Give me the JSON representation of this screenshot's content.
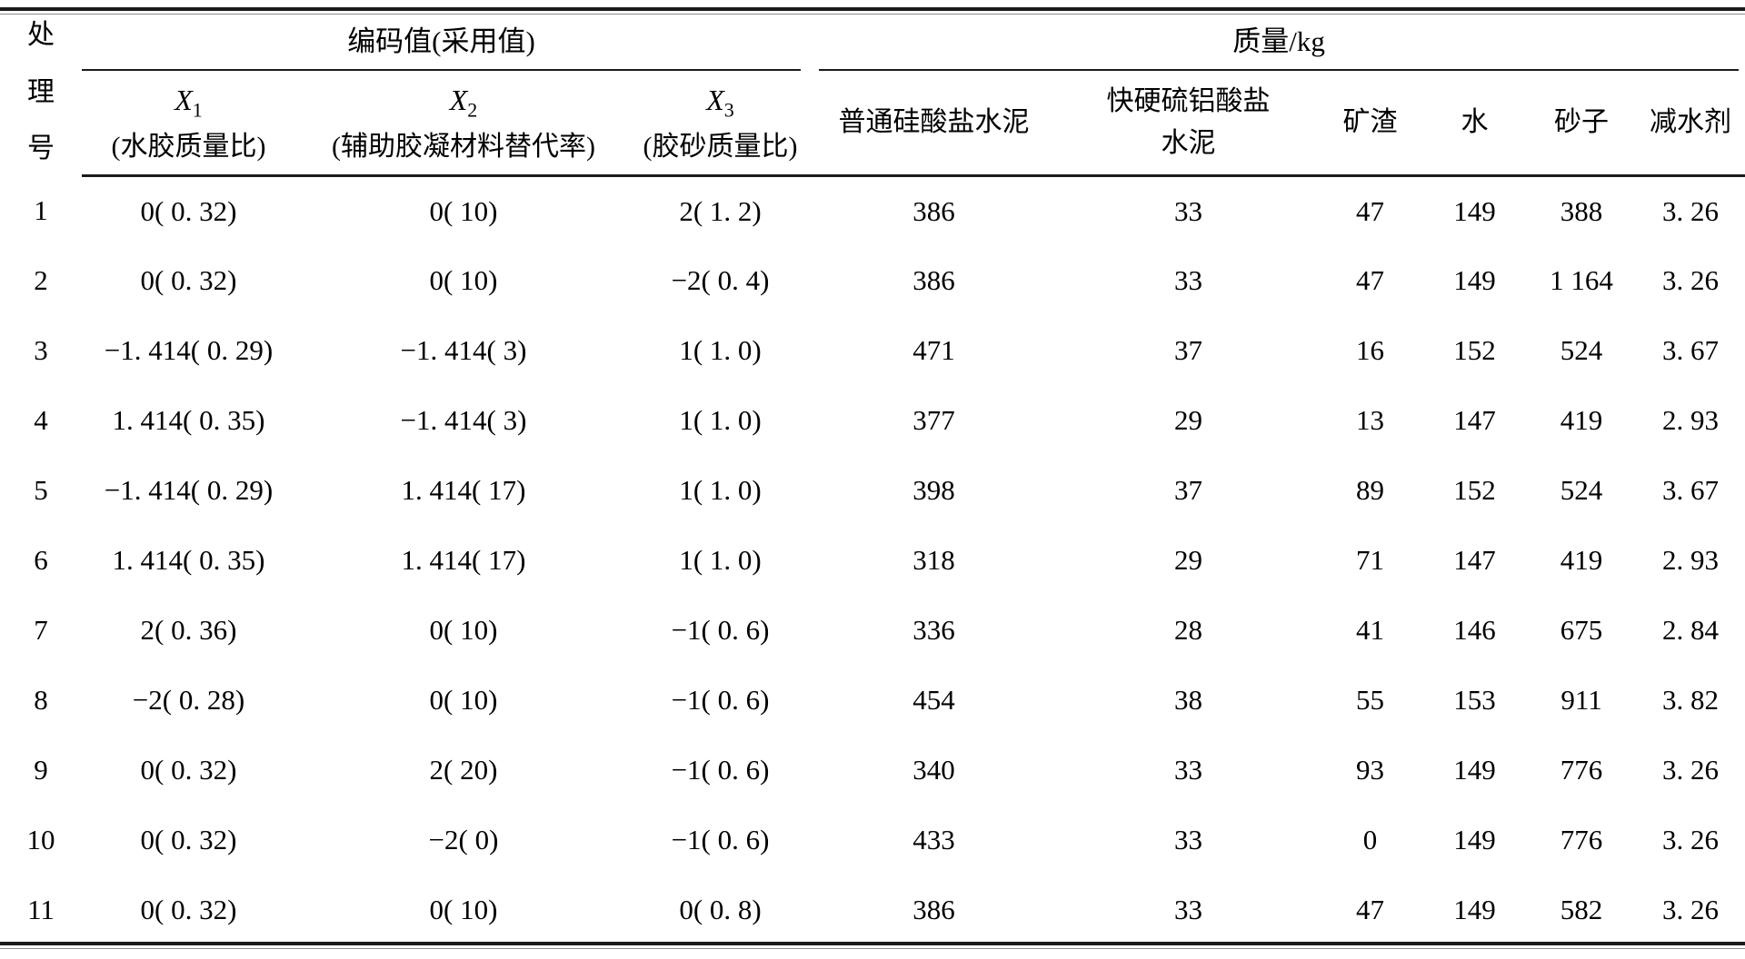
{
  "colors": {
    "background": "#ffffff",
    "text": "#000000",
    "rule": "#1b1b1b"
  },
  "table": {
    "row_header": {
      "chars": [
        "处",
        "理",
        "号"
      ]
    },
    "group_coded": "编码值(采用值)",
    "group_mass": "质量/kg",
    "coded_cols": [
      {
        "sym": "X",
        "sub": "1",
        "label": "(水胶质量比)"
      },
      {
        "sym": "X",
        "sub": "2",
        "label": "(辅助胶凝材料替代率)"
      },
      {
        "sym": "X",
        "sub": "3",
        "label": "(胶砂质量比)"
      }
    ],
    "mass_cols": [
      {
        "lines": [
          "普通硅酸盐水泥",
          ""
        ]
      },
      {
        "lines": [
          "快硬硫铝酸盐",
          "水泥"
        ]
      },
      {
        "lines": [
          "矿渣",
          ""
        ]
      },
      {
        "lines": [
          "水",
          ""
        ]
      },
      {
        "lines": [
          "砂子",
          ""
        ]
      },
      {
        "lines": [
          "减水剂",
          ""
        ]
      }
    ],
    "rows": [
      {
        "no": "1",
        "x1": "0( 0. 32)",
        "x2": "0( 10)",
        "x3": "2( 1. 2)",
        "opc": "386",
        "csa": "33",
        "slag": "47",
        "water": "149",
        "sand": "388",
        "wr": "3. 26"
      },
      {
        "no": "2",
        "x1": "0( 0. 32)",
        "x2": "0( 10)",
        "x3": "−2( 0. 4)",
        "opc": "386",
        "csa": "33",
        "slag": "47",
        "water": "149",
        "sand": "1 164",
        "wr": "3. 26"
      },
      {
        "no": "3",
        "x1": "−1. 414( 0. 29)",
        "x2": "−1. 414( 3)",
        "x3": "1( 1. 0)",
        "opc": "471",
        "csa": "37",
        "slag": "16",
        "water": "152",
        "sand": "524",
        "wr": "3. 67"
      },
      {
        "no": "4",
        "x1": "1. 414( 0. 35)",
        "x2": "−1. 414( 3)",
        "x3": "1( 1. 0)",
        "opc": "377",
        "csa": "29",
        "slag": "13",
        "water": "147",
        "sand": "419",
        "wr": "2. 93"
      },
      {
        "no": "5",
        "x1": "−1. 414( 0. 29)",
        "x2": "1. 414( 17)",
        "x3": "1( 1. 0)",
        "opc": "398",
        "csa": "37",
        "slag": "89",
        "water": "152",
        "sand": "524",
        "wr": "3. 67"
      },
      {
        "no": "6",
        "x1": "1. 414( 0. 35)",
        "x2": "1. 414( 17)",
        "x3": "1( 1. 0)",
        "opc": "318",
        "csa": "29",
        "slag": "71",
        "water": "147",
        "sand": "419",
        "wr": "2. 93"
      },
      {
        "no": "7",
        "x1": "2( 0. 36)",
        "x2": "0( 10)",
        "x3": "−1( 0. 6)",
        "opc": "336",
        "csa": "28",
        "slag": "41",
        "water": "146",
        "sand": "675",
        "wr": "2. 84"
      },
      {
        "no": "8",
        "x1": "−2( 0. 28)",
        "x2": "0( 10)",
        "x3": "−1( 0. 6)",
        "opc": "454",
        "csa": "38",
        "slag": "55",
        "water": "153",
        "sand": "911",
        "wr": "3. 82"
      },
      {
        "no": "9",
        "x1": "0( 0. 32)",
        "x2": "2( 20)",
        "x3": "−1( 0. 6)",
        "opc": "340",
        "csa": "33",
        "slag": "93",
        "water": "149",
        "sand": "776",
        "wr": "3. 26"
      },
      {
        "no": "10",
        "x1": "0( 0. 32)",
        "x2": "−2( 0)",
        "x3": "−1( 0. 6)",
        "opc": "433",
        "csa": "33",
        "slag": "0",
        "water": "149",
        "sand": "776",
        "wr": "3. 26"
      },
      {
        "no": "11",
        "x1": "0( 0. 32)",
        "x2": "0( 10)",
        "x3": "0( 0. 8)",
        "opc": "386",
        "csa": "33",
        "slag": "47",
        "water": "149",
        "sand": "582",
        "wr": "3. 26"
      }
    ]
  }
}
